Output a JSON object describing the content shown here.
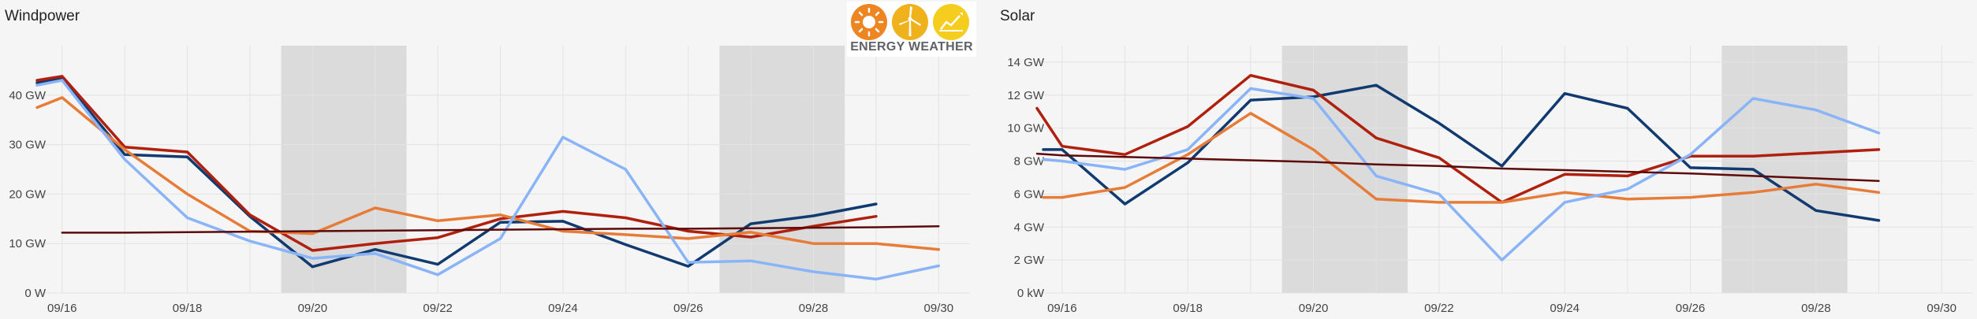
{
  "logo": {
    "text": "ENERGY WEATHER",
    "icons": [
      "sun-icon",
      "wind-turbine-icon",
      "solar-chart-icon"
    ],
    "colors": [
      "#ed8622",
      "#f0b21c",
      "#f5cd1e"
    ]
  },
  "colors": {
    "background": "#f4f5f4",
    "weekend_shade": "#dadbda",
    "grid": "#e2e3e2",
    "navy": "#113a70",
    "red": "#b0200e",
    "orange": "#e77c38",
    "lightblue": "#8ab4f8",
    "darkred": "#5c0a0a"
  },
  "chart_data": [
    {
      "type": "line",
      "title": "Windpower",
      "xlabel": "",
      "ylabel": "",
      "grid": true,
      "legend": "none",
      "xlim": [
        15.6,
        30.5
      ],
      "ylim": [
        0,
        50
      ],
      "x_ticks": [
        16,
        18,
        20,
        22,
        24,
        26,
        28,
        30
      ],
      "x_tick_labels": [
        "09/16",
        "09/18",
        "09/20",
        "09/22",
        "09/24",
        "09/26",
        "09/28",
        "09/30"
      ],
      "y_ticks": [
        0,
        10,
        20,
        30,
        40
      ],
      "y_tick_labels": [
        "0 W",
        "10 GW",
        "20 GW",
        "30 GW",
        "40 GW"
      ],
      "shaded_ranges": [
        [
          19.5,
          21.5
        ],
        [
          26.5,
          28.5
        ]
      ],
      "series": [
        {
          "name": "navy",
          "color": "#113a70",
          "x": [
            15.6,
            16,
            17,
            18,
            19,
            20,
            21,
            22,
            23,
            24,
            25,
            26,
            27,
            28,
            29
          ],
          "values": [
            42.5,
            43.5,
            28,
            27.5,
            15.5,
            5.3,
            8.8,
            5.8,
            14.3,
            14.5,
            9.8,
            5.4,
            14,
            15.6,
            18
          ]
        },
        {
          "name": "red",
          "color": "#b0200e",
          "x": [
            15.6,
            16,
            17,
            18,
            19,
            20,
            21,
            22,
            23,
            24,
            25,
            26,
            27,
            28,
            29
          ],
          "values": [
            43,
            43.8,
            29.5,
            28.5,
            15.8,
            8.6,
            10,
            11.2,
            15,
            16.5,
            15.2,
            12.5,
            11.3,
            13.5,
            15.5
          ]
        },
        {
          "name": "orange",
          "color": "#e77c38",
          "x": [
            15.6,
            16,
            17,
            18,
            19,
            20,
            21,
            22,
            23,
            24,
            25,
            26,
            27,
            28,
            29,
            30
          ],
          "values": [
            37.5,
            39.5,
            29,
            20,
            12.5,
            12,
            17.2,
            14.6,
            15.8,
            12.5,
            11.8,
            11,
            12.3,
            10,
            10,
            8.8
          ]
        },
        {
          "name": "lightblue",
          "color": "#8ab4f8",
          "x": [
            15.6,
            16,
            17,
            18,
            19,
            20,
            21,
            22,
            23,
            24,
            25,
            26,
            27,
            28,
            29,
            30
          ],
          "values": [
            42,
            43,
            27,
            15.2,
            10.5,
            7,
            8,
            3.7,
            11,
            31.5,
            25,
            6.2,
            6.5,
            4.3,
            2.8,
            5.5
          ]
        },
        {
          "name": "darkred",
          "color": "#5c0a0a",
          "x": [
            16,
            17,
            18,
            19,
            20,
            21,
            22,
            23,
            24,
            25,
            26,
            27,
            28,
            29,
            30
          ],
          "values": [
            12.2,
            12.2,
            12.3,
            12.4,
            12.5,
            12.6,
            12.7,
            12.8,
            12.9,
            13,
            13,
            13.1,
            13.2,
            13.3,
            13.5
          ]
        }
      ]
    },
    {
      "type": "line",
      "title": "Solar",
      "xlabel": "",
      "ylabel": "",
      "grid": true,
      "legend": "none",
      "xlim": [
        15.6,
        30.5
      ],
      "ylim": [
        0,
        15
      ],
      "x_ticks": [
        16,
        18,
        20,
        22,
        24,
        26,
        28,
        30
      ],
      "x_tick_labels": [
        "09/16",
        "09/18",
        "09/20",
        "09/22",
        "09/24",
        "09/26",
        "09/28",
        "09/30"
      ],
      "y_ticks": [
        0,
        2,
        4,
        6,
        8,
        10,
        12,
        14
      ],
      "y_tick_labels": [
        "0 kW",
        "2 GW",
        "4 GW",
        "6 GW",
        "8 GW",
        "10 GW",
        "12 GW",
        "14 GW"
      ],
      "shaded_ranges": [
        [
          19.5,
          21.5
        ],
        [
          26.5,
          28.5
        ]
      ],
      "series": [
        {
          "name": "navy",
          "color": "#113a70",
          "x": [
            15.7,
            16,
            17,
            18,
            19,
            20,
            21,
            22,
            23,
            24,
            25,
            26,
            27,
            28,
            29
          ],
          "values": [
            8.7,
            8.7,
            5.4,
            7.9,
            11.7,
            11.9,
            12.6,
            10.3,
            7.7,
            12.1,
            11.2,
            7.6,
            7.5,
            5,
            4.4
          ]
        },
        {
          "name": "red",
          "color": "#b0200e",
          "x": [
            15.6,
            16,
            17,
            18,
            19,
            20,
            21,
            22,
            23,
            24,
            25,
            26,
            27,
            28,
            29
          ],
          "values": [
            11.2,
            8.9,
            8.4,
            10.1,
            13.2,
            12.3,
            9.4,
            8.2,
            5.5,
            7.2,
            7.1,
            8.3,
            8.3,
            8.5,
            8.7
          ]
        },
        {
          "name": "orange",
          "color": "#e77c38",
          "x": [
            15.7,
            16,
            17,
            18,
            19,
            20,
            21,
            22,
            23,
            24,
            25,
            26,
            27,
            28,
            29
          ],
          "values": [
            5.8,
            5.8,
            6.4,
            8.4,
            10.9,
            8.7,
            5.7,
            5.5,
            5.5,
            6.1,
            5.7,
            5.8,
            6.1,
            6.6,
            6.1
          ]
        },
        {
          "name": "lightblue",
          "color": "#8ab4f8",
          "x": [
            15.7,
            16,
            17,
            18,
            19,
            20,
            21,
            22,
            23,
            24,
            25,
            26,
            27,
            28,
            29
          ],
          "values": [
            8.1,
            8,
            7.5,
            8.7,
            12.4,
            11.8,
            7.1,
            6,
            2,
            5.5,
            6.3,
            8.4,
            11.8,
            11.1,
            9.7
          ]
        },
        {
          "name": "darkred",
          "color": "#5c0a0a",
          "x": [
            15.6,
            16,
            17,
            18,
            19,
            20,
            21,
            22,
            23,
            24,
            25,
            26,
            27,
            28,
            29
          ],
          "values": [
            8.45,
            8.35,
            8.25,
            8.15,
            8.05,
            7.95,
            7.8,
            7.7,
            7.55,
            7.45,
            7.35,
            7.25,
            7.1,
            6.95,
            6.8
          ]
        }
      ]
    }
  ]
}
